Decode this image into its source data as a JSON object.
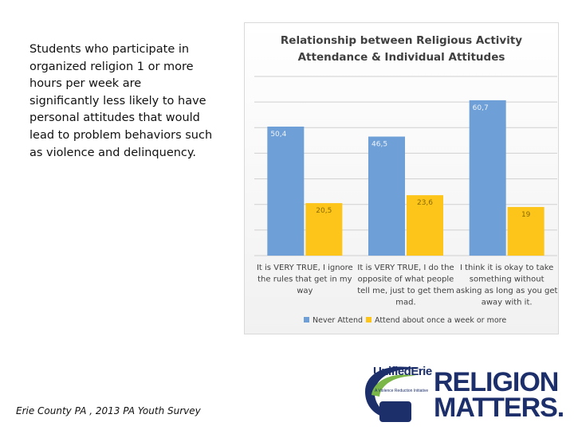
{
  "summary": "Students who participate in organized religion 1 or more hours per week are significantly less likely to have personal attitudes that would lead to problem behaviors such as violence and delinquency.",
  "source": "Erie County PA , 2013 PA Youth Survey",
  "colors": {
    "never_attend": "#6e9fd6",
    "attend_weekly": "#fdc519",
    "logo_navy": "#1c2f6b",
    "logo_green": "#7ab648"
  },
  "chart_data": {
    "type": "bar",
    "title": "Relationship between Religious Activity\nAttendance & Individual Attitudes",
    "categories": [
      [
        "It is VERY TRUE, I ignore",
        "the rules that get in my",
        "way"
      ],
      [
        "It is VERY TRUE, I do the",
        "opposite of what people",
        "tell me, just to get them",
        "mad."
      ],
      [
        "I think it is okay to take",
        "something without",
        "asking as long as you get",
        "away with it."
      ]
    ],
    "series": [
      {
        "name": "Never Attend",
        "values": [
          50.4,
          46.5,
          60.7
        ],
        "labels": [
          "50,4",
          "46,5",
          "60,7"
        ]
      },
      {
        "name": "Attend about once a week or more",
        "values": [
          20.5,
          23.6,
          19
        ],
        "labels": [
          "20,5",
          "23,6",
          "19"
        ]
      }
    ],
    "ylim": [
      0,
      70
    ],
    "grid": true,
    "legend": "bottom",
    "xlabel": "",
    "ylabel": ""
  },
  "logo": {
    "brand": "UnifiedErie",
    "tagline": "A Violence Reduction Initiative",
    "line1": "RELIGION",
    "line2": "MATTERS."
  }
}
